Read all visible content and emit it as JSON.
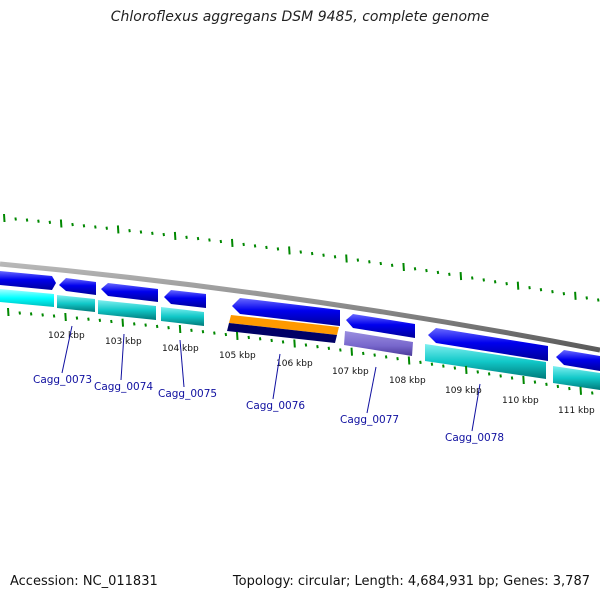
{
  "title": "Chloroflexus aggregans DSM 9485, complete genome",
  "footer": {
    "accession": "Accession: NC_011831",
    "topology": "Topology: circular; Length: 4,684,931 bp; Genes: 3,787"
  },
  "ruler_ticks": [
    "102 kbp",
    "103 kbp",
    "104 kbp",
    "105 kbp",
    "106 kbp",
    "107 kbp",
    "108 kbp",
    "109 kbp",
    "110 kbp",
    "111 kbp"
  ],
  "gene_labels": [
    "Cagg_0073",
    "Cagg_0074",
    "Cagg_0075",
    "Cagg_0076",
    "Cagg_0077",
    "Cagg_0078"
  ],
  "colors": {
    "backbone": "#808080",
    "cds_forward": "#0000ee",
    "cds_reverse_cyan": "#00d0d0",
    "bright_cyan": "#00ffff",
    "orange": "#ff9900",
    "navy": "#000066",
    "purple": "#7766cc",
    "tick_green": "#008800",
    "label_blue": "#1010a0"
  }
}
